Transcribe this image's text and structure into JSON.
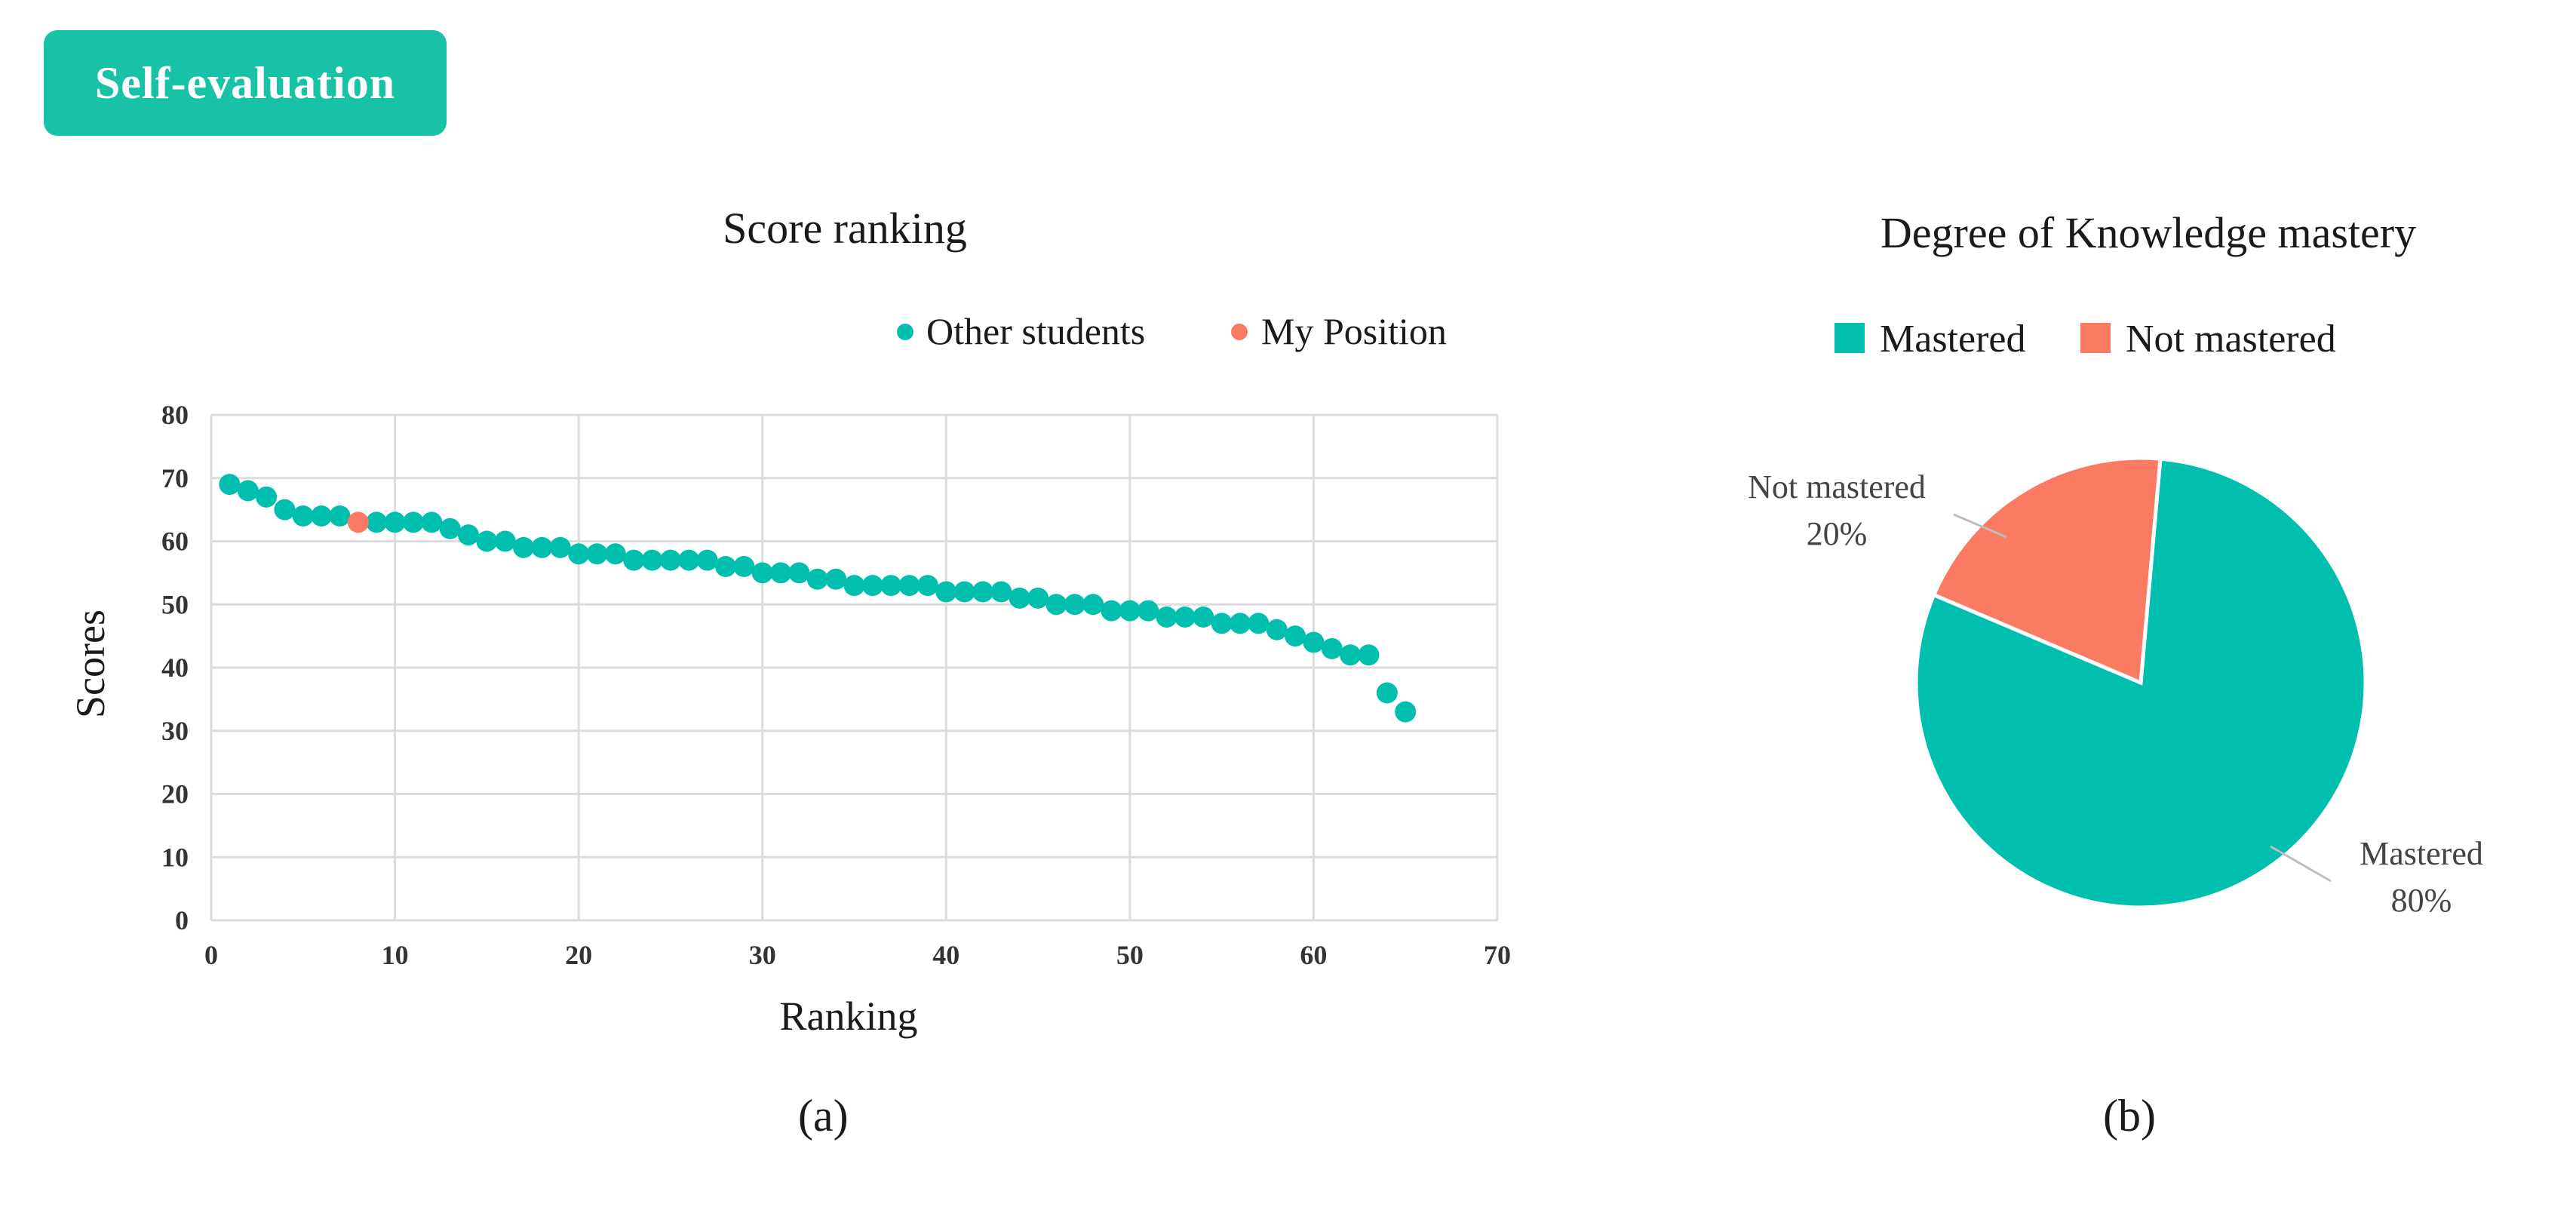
{
  "header": {
    "badge_label": "Self-evaluation"
  },
  "colors": {
    "teal": "#00bfae",
    "coral": "#fb7a62",
    "badge": "#18c2a6",
    "grid": "#dcdcdc"
  },
  "captions": {
    "a": "(a)",
    "b": "(b)"
  },
  "chart_data": [
    {
      "type": "scatter",
      "title": "Score ranking",
      "xlabel": "Ranking",
      "ylabel": "Scores",
      "xlim": [
        0,
        70
      ],
      "ylim": [
        0,
        80
      ],
      "xticks": [
        0,
        10,
        20,
        30,
        40,
        50,
        60,
        70
      ],
      "yticks": [
        0,
        10,
        20,
        30,
        40,
        50,
        60,
        70,
        80
      ],
      "grid": true,
      "legend_position": "top-right",
      "series": [
        {
          "name": "Other students",
          "color": "#00bfae",
          "x": [
            1,
            2,
            3,
            4,
            5,
            6,
            7,
            9,
            10,
            11,
            12,
            13,
            14,
            15,
            16,
            17,
            18,
            19,
            20,
            21,
            22,
            23,
            24,
            25,
            26,
            27,
            28,
            29,
            30,
            31,
            32,
            33,
            34,
            35,
            36,
            37,
            38,
            39,
            40,
            41,
            42,
            43,
            44,
            45,
            46,
            47,
            48,
            49,
            50,
            51,
            52,
            53,
            54,
            55,
            56,
            57,
            58,
            59,
            60,
            61,
            62,
            63,
            64,
            65
          ],
          "y": [
            69,
            68,
            67,
            65,
            64,
            64,
            64,
            63,
            63,
            63,
            63,
            62,
            61,
            60,
            60,
            59,
            59,
            59,
            58,
            58,
            58,
            57,
            57,
            57,
            57,
            57,
            56,
            56,
            55,
            55,
            55,
            54,
            54,
            53,
            53,
            53,
            53,
            53,
            52,
            52,
            52,
            52,
            51,
            51,
            50,
            50,
            50,
            49,
            49,
            49,
            48,
            48,
            48,
            47,
            47,
            47,
            46,
            45,
            44,
            43,
            42,
            42,
            36,
            33
          ]
        },
        {
          "name": "My Position",
          "color": "#fb7a62",
          "x": [
            8
          ],
          "y": [
            63
          ]
        }
      ]
    },
    {
      "type": "pie",
      "title": "Degree of Knowledge mastery",
      "legend_position": "top",
      "slices": [
        {
          "label": "Mastered",
          "value": 80,
          "value_label": "80%",
          "color": "#00bfae"
        },
        {
          "label": "Not mastered",
          "value": 20,
          "value_label": "20%",
          "color": "#fb7a62"
        }
      ]
    }
  ]
}
